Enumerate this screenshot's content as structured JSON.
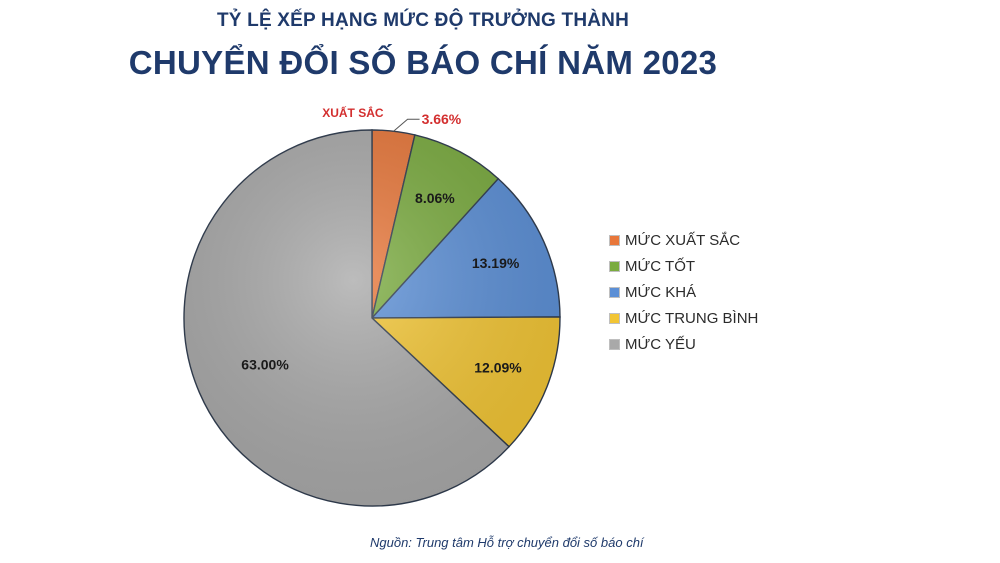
{
  "chart_data": {
    "type": "pie",
    "subtitle": "TỶ LỆ XẾP HẠNG MỨC ĐỘ TRƯỞNG THÀNH",
    "title": "CHUYỂN ĐỔI SỐ BÁO CHÍ NĂM 2023",
    "categories": [
      "MỨC XUẤT SẮC",
      "MỨC TỐT",
      "MỨC KHÁ",
      "MỨC TRUNG BÌNH",
      "MỨC YẾU"
    ],
    "values": [
      3.66,
      8.06,
      13.19,
      12.09,
      63.0
    ],
    "data_labels": [
      "3.66%",
      "8.06%",
      "13.19%",
      "12.09%",
      "63.00%"
    ],
    "colors": [
      "#e8773a",
      "#7aab3f",
      "#5b8fd6",
      "#f2c534",
      "#a9a9a9"
    ],
    "callout": "XUẤT SẮC",
    "legend_position": "right",
    "source": "Nguồn: Trung tâm Hỗ trợ chuyển đổi số báo chí"
  }
}
